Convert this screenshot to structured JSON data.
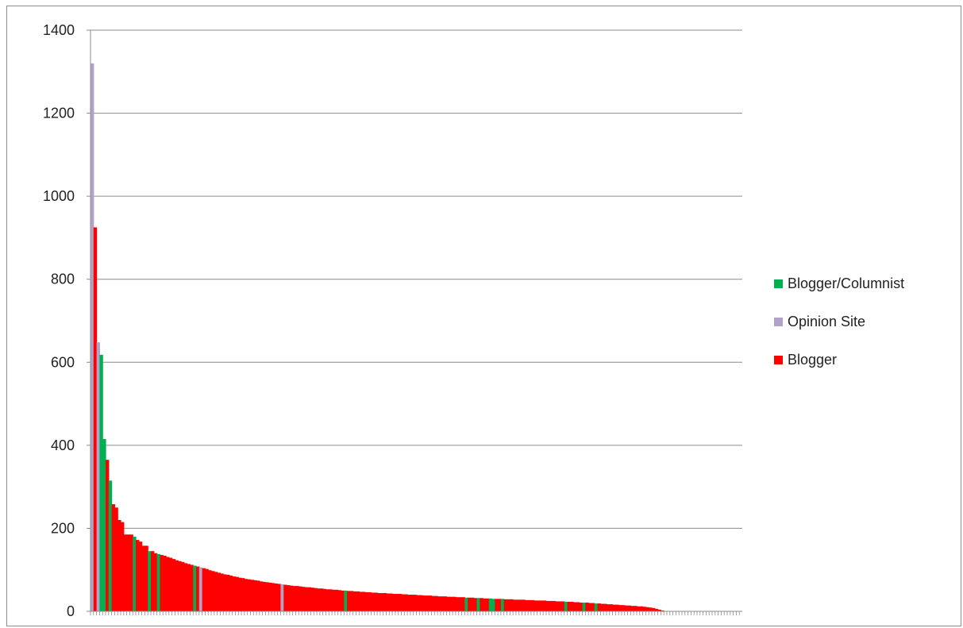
{
  "chart_data": {
    "type": "bar",
    "title": "",
    "xlabel": "",
    "ylabel": "",
    "ylim": [
      0,
      1400
    ],
    "yticks": [
      "0",
      "200",
      "400",
      "600",
      "800",
      "1000",
      "1200",
      "1400"
    ],
    "grid": true,
    "legend_position": "right",
    "colors": {
      "Blogger/Columnist": "#00b050",
      "Opinion Site": "#b3a2c7",
      "Blogger": "#ff0000"
    },
    "legend": [
      "Blogger/Columnist",
      "Opinion Site",
      "Blogger"
    ],
    "values": [
      1320,
      925,
      648,
      618,
      415,
      365,
      315,
      258,
      250,
      220,
      215,
      185,
      185,
      185,
      180,
      172,
      168,
      158,
      158,
      145,
      145,
      140,
      138,
      136,
      134,
      131,
      129,
      126,
      123,
      121,
      119,
      116,
      114,
      112,
      110,
      108,
      106,
      104,
      102,
      99,
      97,
      95,
      93,
      91,
      89,
      88,
      86,
      84,
      83,
      81,
      80,
      78,
      77,
      76,
      75,
      74,
      72,
      71,
      70,
      69,
      68,
      67,
      66,
      65,
      64,
      63,
      62,
      61,
      61,
      60,
      59,
      58,
      58,
      57,
      56,
      55,
      55,
      54,
      53,
      53,
      52,
      52,
      51,
      50,
      50,
      49,
      49,
      48,
      48,
      47,
      47,
      46,
      46,
      45,
      45,
      44,
      44,
      44,
      43,
      43,
      42,
      42,
      42,
      41,
      41,
      40,
      40,
      40,
      39,
      39,
      38,
      38,
      38,
      37,
      37,
      36,
      36,
      36,
      35,
      35,
      35,
      34,
      34,
      34,
      33,
      33,
      33,
      32,
      32,
      32,
      31,
      31,
      31,
      30,
      30,
      30,
      30,
      29,
      29,
      29,
      28,
      28,
      28,
      28,
      27,
      27,
      27,
      26,
      26,
      26,
      26,
      25,
      25,
      25,
      24,
      24,
      24,
      23,
      23,
      23,
      22,
      22,
      21,
      21,
      21,
      20,
      20,
      19,
      19,
      18,
      18,
      17,
      17,
      16,
      16,
      15,
      15,
      14,
      14,
      13,
      13,
      12,
      12,
      11,
      10,
      9,
      8,
      6,
      4,
      2,
      1,
      0,
      0,
      0,
      0,
      0,
      0,
      0,
      0,
      0,
      0,
      0,
      0,
      0,
      0,
      0,
      0,
      0,
      0,
      0,
      0,
      0,
      0,
      0,
      0,
      0
    ],
    "categories_by_bar": [
      "Opinion Site",
      "Blogger",
      "Opinion Site",
      "Blogger/Columnist",
      "Blogger/Columnist",
      "Blogger",
      "Blogger/Columnist",
      "Blogger",
      "Blogger",
      "Blogger",
      "Blogger",
      "Blogger",
      "Blogger",
      "Blogger",
      "Blogger/Columnist",
      "Blogger",
      "Blogger",
      "Blogger",
      "Blogger",
      "Blogger/Columnist",
      "Blogger",
      "Blogger",
      "Blogger/Columnist",
      "Blogger",
      "Blogger",
      "Blogger",
      "Blogger",
      "Blogger",
      "Blogger",
      "Blogger",
      "Blogger",
      "Blogger",
      "Blogger",
      "Blogger",
      "Blogger/Columnist",
      "Blogger",
      "Opinion Site",
      "Blogger",
      "Blogger",
      "Blogger",
      "Blogger",
      "Blogger",
      "Blogger",
      "Blogger",
      "Blogger",
      "Blogger",
      "Blogger",
      "Blogger",
      "Blogger",
      "Blogger",
      "Blogger",
      "Blogger",
      "Blogger",
      "Blogger",
      "Blogger",
      "Blogger",
      "Blogger",
      "Blogger",
      "Blogger",
      "Blogger",
      "Blogger",
      "Blogger",
      "Blogger",
      "Opinion Site",
      "Blogger",
      "Blogger",
      "Blogger",
      "Blogger",
      "Blogger",
      "Blogger",
      "Blogger",
      "Blogger",
      "Blogger",
      "Blogger",
      "Blogger",
      "Blogger",
      "Blogger",
      "Blogger",
      "Blogger",
      "Blogger",
      "Blogger",
      "Blogger",
      "Blogger",
      "Blogger",
      "Blogger/Columnist",
      "Blogger",
      "Blogger",
      "Blogger",
      "Blogger",
      "Blogger",
      "Blogger",
      "Blogger",
      "Blogger",
      "Blogger",
      "Blogger",
      "Blogger",
      "Blogger",
      "Blogger",
      "Blogger",
      "Blogger",
      "Blogger",
      "Blogger",
      "Blogger",
      "Blogger",
      "Blogger",
      "Blogger",
      "Blogger",
      "Blogger",
      "Blogger",
      "Blogger",
      "Blogger",
      "Blogger",
      "Blogger",
      "Blogger",
      "Blogger",
      "Blogger",
      "Blogger",
      "Blogger",
      "Blogger",
      "Blogger",
      "Blogger",
      "Blogger",
      "Blogger",
      "Blogger",
      "Blogger/Columnist",
      "Blogger",
      "Blogger",
      "Blogger",
      "Blogger/Columnist",
      "Blogger",
      "Blogger",
      "Blogger",
      "Blogger/Columnist",
      "Blogger/Columnist",
      "Blogger",
      "Blogger",
      "Blogger/Columnist",
      "Blogger",
      "Blogger",
      "Blogger",
      "Blogger",
      "Blogger",
      "Blogger",
      "Blogger",
      "Blogger",
      "Blogger",
      "Blogger",
      "Blogger",
      "Blogger",
      "Blogger",
      "Blogger",
      "Blogger",
      "Blogger",
      "Blogger",
      "Blogger",
      "Blogger",
      "Blogger",
      "Blogger/Columnist",
      "Blogger",
      "Blogger",
      "Blogger",
      "Blogger",
      "Blogger",
      "Blogger/Columnist",
      "Blogger",
      "Blogger",
      "Blogger",
      "Blogger/Columnist",
      "Blogger",
      "Blogger",
      "Blogger",
      "Blogger",
      "Blogger",
      "Blogger",
      "Blogger",
      "Blogger",
      "Blogger",
      "Blogger",
      "Blogger",
      "Blogger",
      "Blogger",
      "Blogger",
      "Blogger",
      "Blogger",
      "Blogger",
      "Blogger",
      "Blogger",
      "Blogger",
      "Blogger",
      "Blogger",
      "Blogger",
      "Blogger",
      "Blogger",
      "Blogger",
      "Blogger",
      "Blogger",
      "Blogger",
      "Blogger",
      "Blogger",
      "Blogger",
      "Blogger",
      "Blogger",
      "Blogger",
      "Blogger",
      "Blogger",
      "Blogger",
      "Blogger",
      "Blogger",
      "Blogger",
      "Blogger",
      "Blogger",
      "Blogger",
      "Blogger",
      "Blogger",
      "Blogger",
      "Blogger",
      "Blogger"
    ]
  }
}
